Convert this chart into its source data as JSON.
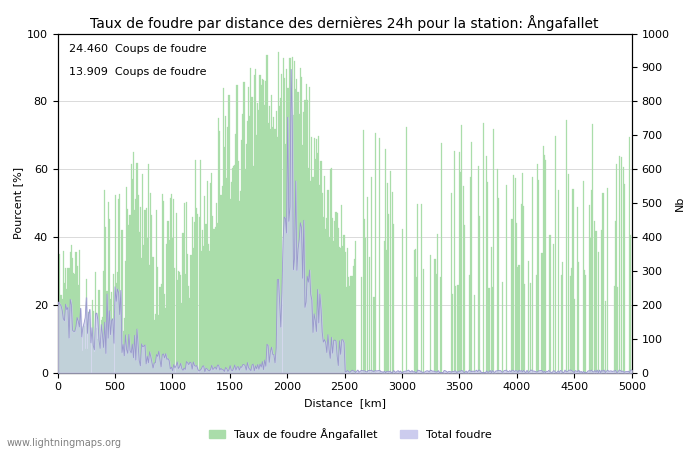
{
  "title": "Taux de foudre par distance des dernières 24h pour la station: Ångafallet",
  "xlabel": "Distance  [km]",
  "ylabel_left": "Pourcent [%]",
  "ylabel_right": "Nb",
  "annotation1": "24.460  Coups de foudre",
  "annotation2": "13.909  Coups de foudre",
  "legend1": "Taux de foudre Ångafallet",
  "legend2": "Total foudre",
  "watermark": "www.lightningmaps.org",
  "xlim": [
    0,
    5000
  ],
  "ylim_left": [
    0,
    100
  ],
  "ylim_right": [
    0,
    1000
  ],
  "xticks": [
    0,
    500,
    1000,
    1500,
    2000,
    2500,
    3000,
    3500,
    4000,
    4500,
    5000
  ],
  "yticks_left": [
    0,
    20,
    40,
    60,
    80,
    100
  ],
  "yticks_right": [
    0,
    100,
    200,
    300,
    400,
    500,
    600,
    700,
    800,
    900,
    1000
  ],
  "bar_color": "#aaddaa",
  "line_color": "#9999cc",
  "line_fill_color": "#ccccee",
  "background_color": "#ffffff",
  "grid_color": "#cccccc",
  "title_fontsize": 10,
  "axis_fontsize": 8,
  "tick_fontsize": 8,
  "annotation_fontsize": 8,
  "figwidth": 7.0,
  "figheight": 4.5,
  "dpi": 100
}
